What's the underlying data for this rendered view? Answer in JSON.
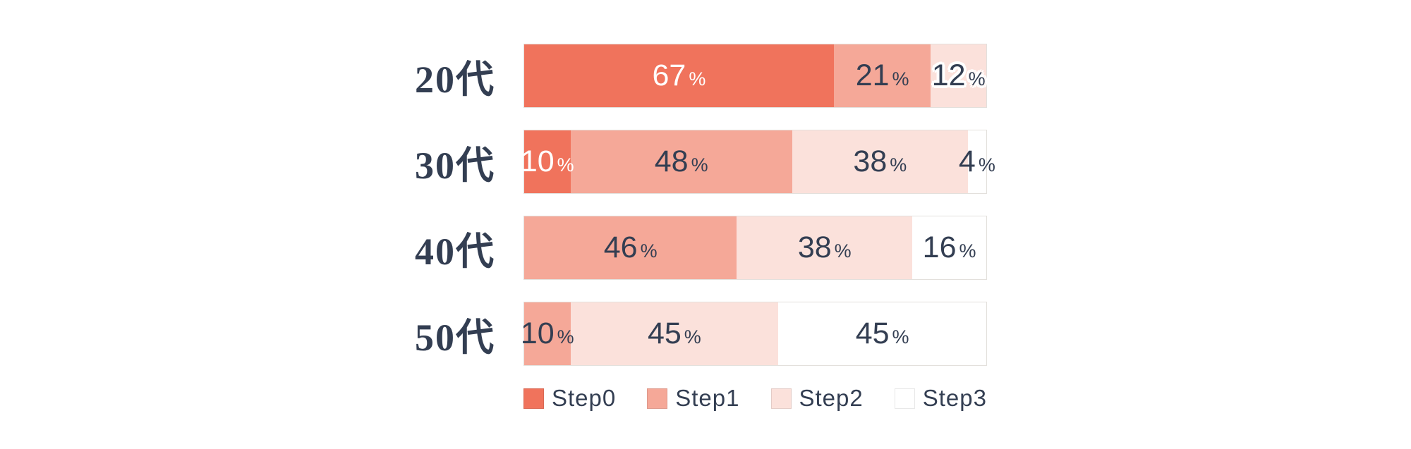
{
  "chart_data": {
    "type": "bar",
    "orientation": "horizontal",
    "stacked": true,
    "unit": "%",
    "title": "",
    "xlabel": "",
    "ylabel": "",
    "axis": "none",
    "grid": false,
    "xlim": [
      0,
      100
    ],
    "value_labels": "inside",
    "legend_position": "bottom",
    "categories": [
      "20代",
      "30代",
      "40代",
      "50代"
    ],
    "series": [
      {
        "name": "Step0",
        "color": "#F0735C",
        "values": [
          67,
          10,
          0,
          0
        ]
      },
      {
        "name": "Step1",
        "color": "#F5A898",
        "values": [
          21,
          48,
          46,
          10
        ]
      },
      {
        "name": "Step2",
        "color": "#FBE1DB",
        "values": [
          12,
          38,
          38,
          45
        ]
      },
      {
        "name": "Step3",
        "color": "#FFFFFF",
        "values": [
          0,
          4,
          16,
          45
        ]
      }
    ],
    "label_colors": {
      "Step0": "white",
      "Step1": "navy",
      "Step2": "navy",
      "Step3": "navy"
    },
    "halo_labels": [
      {
        "row": 0,
        "series": "Step2"
      }
    ],
    "legend": [
      "Step0",
      "Step1",
      "Step2",
      "Step3"
    ],
    "text_color": "#333E52",
    "track_border_color": "#E3E0DC",
    "background": "#FFFFFF"
  }
}
